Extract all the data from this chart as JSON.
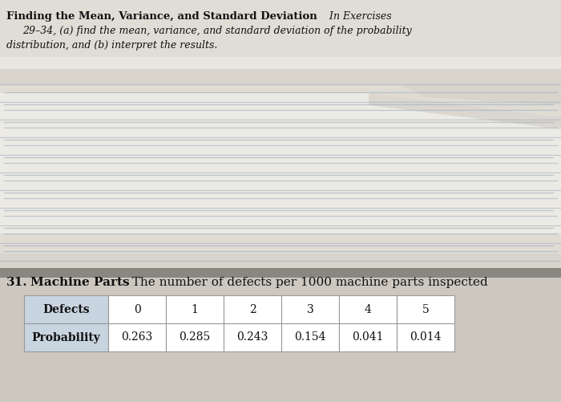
{
  "title_bold": "Finding the Mean, Variance, and Standard Deviation",
  "title_italic_suffix": "  In Exercises",
  "line2": "29–34, (a) find the mean, variance, and standard deviation of the probability",
  "line3": "distribution, and (b) interpret the results.",
  "problem_number": "31.",
  "problem_title_bold": "Machine Parts",
  "problem_desc": "  The number of defects per 1000 machine parts inspected",
  "table_row1_label": "Defects",
  "table_row2_label": "Probability",
  "defects": [
    "0",
    "1",
    "2",
    "3",
    "4",
    "5"
  ],
  "probabilities": [
    "0.263",
    "0.285",
    "0.243",
    "0.154",
    "0.041",
    "0.014"
  ],
  "bg_color": "#e8e6e0",
  "top_bg_color": "#dedad2",
  "page1_color": "#f0ede8",
  "page2_color": "#e8e5de",
  "page3_color": "#dedad4",
  "line_color": "#99aabb",
  "separator_color": "#444444",
  "table_header_bg": "#c8d4e0",
  "table_border_color": "#999999",
  "text_color": "#111111",
  "bottom_bg": "#c8c4bc"
}
